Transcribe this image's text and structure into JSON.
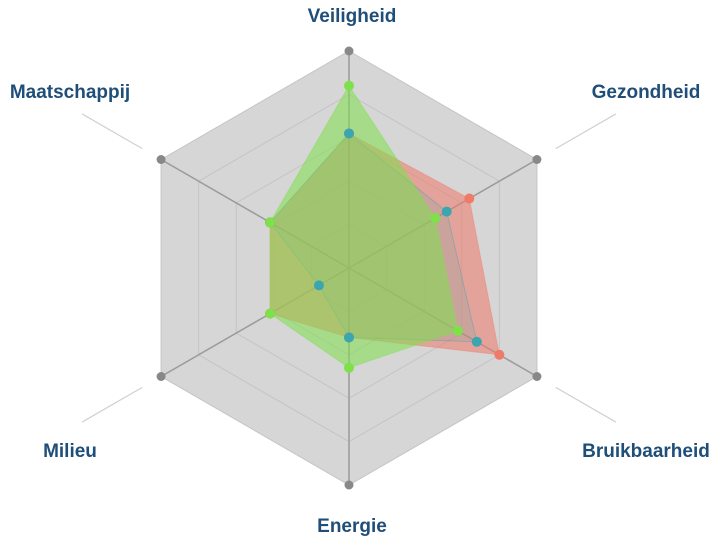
{
  "chart_data": {
    "type": "radar",
    "categories": [
      "Veiligheid",
      "Gezondheid",
      "Bruikbaarheid",
      "Energie",
      "Milieu",
      "Maatschappij"
    ],
    "rlim": [
      0,
      5
    ],
    "rticks": [
      1,
      2,
      3,
      4,
      5
    ],
    "grid": true,
    "series": [
      {
        "color": "#f07a6a",
        "values": [
          3.1,
          3.2,
          4.0,
          1.6,
          2.1,
          2.1
        ]
      },
      {
        "color": "#3aa6b0",
        "values": [
          3.1,
          2.6,
          3.4,
          1.6,
          0.8,
          2.1
        ]
      },
      {
        "color": "#7ee04a",
        "values": [
          4.2,
          2.3,
          2.9,
          2.3,
          2.1,
          2.1
        ]
      }
    ]
  }
}
